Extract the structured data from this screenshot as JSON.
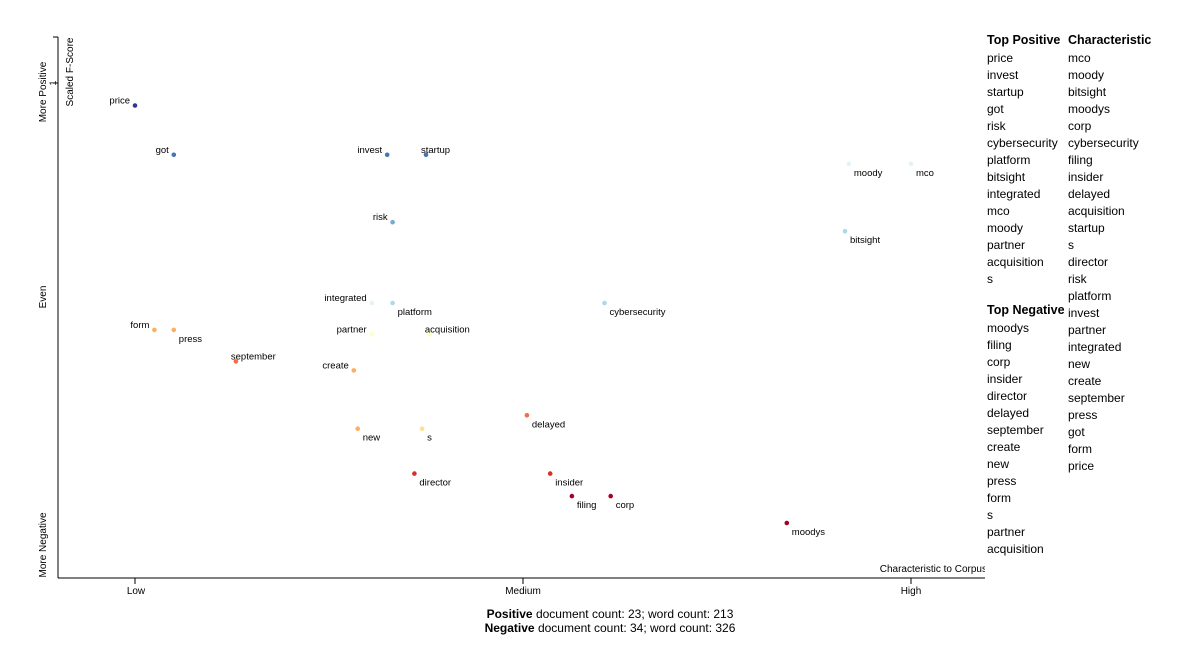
{
  "chart_data": {
    "type": "scatter",
    "xlabel": "Characteristic to Corpus",
    "ylabel": "Scaled F-Score",
    "x_ticks": [
      "Low",
      "Medium",
      "High"
    ],
    "y_ticks": [
      "More Negative",
      "Even",
      "More Positive"
    ],
    "y_tick_value": "1",
    "xlim": [
      0,
      1
    ],
    "ylim": [
      0,
      1
    ],
    "points": [
      {
        "term": "price",
        "x": 0.0,
        "y": 0.95,
        "color": "#313695"
      },
      {
        "term": "got",
        "x": 0.05,
        "y": 0.84,
        "color": "#4575b4"
      },
      {
        "term": "invest",
        "x": 0.325,
        "y": 0.84,
        "color": "#4575b4"
      },
      {
        "term": "startup",
        "x": 0.375,
        "y": 0.84,
        "color": "#4575b4"
      },
      {
        "term": "risk",
        "x": 0.332,
        "y": 0.69,
        "color": "#74add1"
      },
      {
        "term": "moody",
        "x": 0.92,
        "y": 0.82,
        "color": "#e0f3f8"
      },
      {
        "term": "mco",
        "x": 1.0,
        "y": 0.82,
        "color": "#e0f3f8"
      },
      {
        "term": "bitsight",
        "x": 0.915,
        "y": 0.67,
        "color": "#abd9e9"
      },
      {
        "term": "integrated",
        "x": 0.305,
        "y": 0.51,
        "color": "#e0f3f8"
      },
      {
        "term": "platform",
        "x": 0.332,
        "y": 0.51,
        "color": "#abd9e9"
      },
      {
        "term": "cybersecurity",
        "x": 0.605,
        "y": 0.51,
        "color": "#abd9e9"
      },
      {
        "term": "form",
        "x": 0.025,
        "y": 0.45,
        "color": "#fdae61"
      },
      {
        "term": "press",
        "x": 0.05,
        "y": 0.45,
        "color": "#fdae61"
      },
      {
        "term": "partner",
        "x": 0.305,
        "y": 0.44,
        "color": "#ffffbf"
      },
      {
        "term": "acquisition",
        "x": 0.38,
        "y": 0.44,
        "color": "#ffffbf"
      },
      {
        "term": "september",
        "x": 0.13,
        "y": 0.38,
        "color": "#f46d43"
      },
      {
        "term": "create",
        "x": 0.282,
        "y": 0.36,
        "color": "#fdae61"
      },
      {
        "term": "new",
        "x": 0.287,
        "y": 0.23,
        "color": "#fdae61"
      },
      {
        "term": "s",
        "x": 0.37,
        "y": 0.23,
        "color": "#fee090"
      },
      {
        "term": "delayed",
        "x": 0.505,
        "y": 0.26,
        "color": "#f46d43"
      },
      {
        "term": "director",
        "x": 0.36,
        "y": 0.13,
        "color": "#d73027"
      },
      {
        "term": "insider",
        "x": 0.535,
        "y": 0.13,
        "color": "#d73027"
      },
      {
        "term": "filing",
        "x": 0.563,
        "y": 0.08,
        "color": "#a50026"
      },
      {
        "term": "corp",
        "x": 0.613,
        "y": 0.08,
        "color": "#a50026"
      },
      {
        "term": "moodys",
        "x": 0.84,
        "y": 0.02,
        "color": "#a50026"
      }
    ]
  },
  "top_positive": {
    "title": "Top Positive",
    "terms": [
      "price",
      "invest",
      "startup",
      "got",
      "risk",
      "cybersecurity",
      "platform",
      "bitsight",
      "integrated",
      "mco",
      "moody",
      "partner",
      "acquisition",
      "s"
    ]
  },
  "top_negative": {
    "title": "Top Negative",
    "terms": [
      "moodys",
      "filing",
      "corp",
      "insider",
      "director",
      "delayed",
      "september",
      "create",
      "new",
      "press",
      "form",
      "s",
      "partner",
      "acquisition"
    ]
  },
  "characteristic": {
    "title": "Characteristic",
    "terms": [
      "mco",
      "moody",
      "bitsight",
      "moodys",
      "corp",
      "cybersecurity",
      "filing",
      "insider",
      "delayed",
      "acquisition",
      "startup",
      "s",
      "director",
      "risk",
      "platform",
      "invest",
      "partner",
      "integrated",
      "new",
      "create",
      "september",
      "press",
      "got",
      "form",
      "price"
    ]
  },
  "footer": {
    "positive_label": "Positive",
    "positive_text": " document count: 23; word count: 213",
    "negative_label": "Negative",
    "negative_text": " document count: 34; word count: 326"
  }
}
